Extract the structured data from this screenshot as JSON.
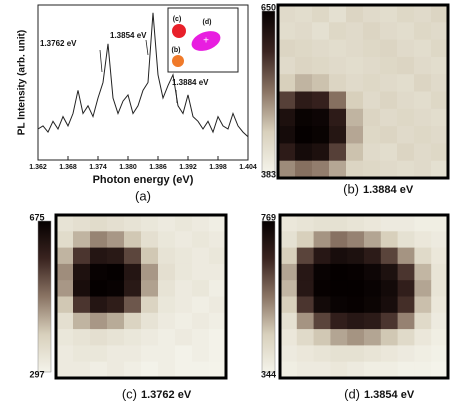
{
  "chart_data": [
    {
      "type": "line",
      "x_label": "Photon energy (eV)",
      "y_label": "PL Intensity (arb. unit)",
      "caption": "(a)",
      "x": [
        1.362,
        1.363,
        1.364,
        1.365,
        1.366,
        1.367,
        1.368,
        1.369,
        1.37,
        1.371,
        1.372,
        1.373,
        1.374,
        1.375,
        1.376,
        1.377,
        1.378,
        1.379,
        1.38,
        1.381,
        1.382,
        1.383,
        1.384,
        1.385,
        1.386,
        1.387,
        1.388,
        1.389,
        1.39,
        1.391,
        1.392,
        1.393,
        1.394,
        1.395,
        1.396,
        1.397,
        1.398,
        1.399,
        1.4,
        1.401,
        1.402,
        1.403,
        1.404
      ],
      "values": [
        20,
        22,
        18,
        25,
        20,
        28,
        22,
        30,
        45,
        30,
        35,
        28,
        40,
        50,
        75,
        40,
        30,
        38,
        42,
        30,
        35,
        45,
        50,
        95,
        55,
        40,
        48,
        55,
        35,
        30,
        42,
        28,
        25,
        20,
        25,
        18,
        28,
        22,
        20,
        30,
        22,
        18,
        15
      ],
      "color": "#222222",
      "xlim": [
        1.362,
        1.404
      ],
      "xticks": [
        1.362,
        1.368,
        1.374,
        {
          "value": 1.38,
          "label": "1.380"
        },
        1.386,
        1.392,
        1.398,
        1.404
      ],
      "ylim": [
        0,
        100
      ],
      "annotations": [
        "1.3762 eV",
        "1.3854 eV",
        "1.3884 eV"
      ],
      "inset_labels": [
        "(c)",
        "(d)",
        "(b)"
      ],
      "inset_colors": [
        "#e8202a",
        "#e81ee0",
        "#f07a2a"
      ]
    },
    {
      "type": "heatmap",
      "caption": "(b)",
      "energy": "1.3884 eV",
      "zlim": [
        383,
        650
      ],
      "colormap": [
        "#f4f3ea",
        "#d8d0bc",
        "#8a7464",
        "#3a2420",
        "#050000"
      ],
      "z": [
        [
          430,
          425,
          435,
          420,
          440,
          430,
          425,
          435,
          430,
          440
        ],
        [
          425,
          430,
          420,
          435,
          430,
          440,
          430,
          425,
          435,
          430
        ],
        [
          440,
          435,
          430,
          425,
          430,
          435,
          440,
          430,
          425,
          435
        ],
        [
          430,
          440,
          435,
          430,
          425,
          430,
          435,
          440,
          430,
          425
        ],
        [
          450,
          470,
          460,
          440,
          430,
          435,
          430,
          425,
          440,
          430
        ],
        [
          560,
          600,
          590,
          520,
          450,
          430,
          440,
          430,
          425,
          435
        ],
        [
          620,
          645,
          640,
          600,
          470,
          440,
          430,
          435,
          430,
          425
        ],
        [
          630,
          650,
          645,
          610,
          480,
          435,
          440,
          430,
          435,
          430
        ],
        [
          600,
          630,
          620,
          560,
          460,
          430,
          425,
          440,
          430,
          435
        ],
        [
          500,
          520,
          510,
          480,
          440,
          435,
          430,
          425,
          430,
          420
        ]
      ]
    },
    {
      "type": "heatmap",
      "caption": "(c)",
      "energy": "1.3762 eV",
      "zlim": [
        297,
        675
      ],
      "colormap": [
        "#f4f3ea",
        "#d8d0bc",
        "#8a7464",
        "#3a2420",
        "#050000"
      ],
      "z": [
        [
          340,
          350,
          360,
          350,
          340,
          330,
          320,
          330,
          320,
          310
        ],
        [
          360,
          420,
          470,
          450,
          400,
          350,
          330,
          320,
          330,
          320
        ],
        [
          420,
          560,
          620,
          610,
          540,
          400,
          340,
          330,
          320,
          330
        ],
        [
          460,
          630,
          670,
          675,
          620,
          450,
          350,
          330,
          320,
          320
        ],
        [
          450,
          640,
          675,
          670,
          610,
          440,
          340,
          320,
          330,
          310
        ],
        [
          400,
          560,
          620,
          600,
          520,
          380,
          330,
          320,
          310,
          320
        ],
        [
          350,
          420,
          450,
          430,
          380,
          340,
          320,
          310,
          320,
          310
        ],
        [
          330,
          340,
          350,
          340,
          330,
          320,
          310,
          320,
          310,
          300
        ],
        [
          320,
          330,
          330,
          320,
          320,
          310,
          310,
          300,
          310,
          300
        ],
        [
          320,
          320,
          310,
          320,
          310,
          300,
          310,
          300,
          300,
          297
        ]
      ]
    },
    {
      "type": "heatmap",
      "caption": "(d)",
      "energy": "1.3854 eV",
      "zlim": [
        344,
        769
      ],
      "colormap": [
        "#f4f3ea",
        "#d8d0bc",
        "#8a7464",
        "#3a2420",
        "#050000"
      ],
      "z": [
        [
          380,
          390,
          400,
          400,
          390,
          380,
          370,
          370,
          360,
          360
        ],
        [
          400,
          450,
          520,
          560,
          540,
          500,
          450,
          400,
          380,
          370
        ],
        [
          450,
          620,
          700,
          730,
          720,
          690,
          620,
          520,
          420,
          380
        ],
        [
          500,
          700,
          760,
          769,
          765,
          750,
          720,
          640,
          480,
          390
        ],
        [
          480,
          700,
          765,
          769,
          769,
          760,
          740,
          680,
          500,
          390
        ],
        [
          450,
          640,
          740,
          760,
          765,
          755,
          730,
          650,
          470,
          380
        ],
        [
          400,
          520,
          620,
          680,
          700,
          690,
          640,
          540,
          420,
          370
        ],
        [
          380,
          420,
          460,
          500,
          520,
          500,
          460,
          420,
          380,
          360
        ],
        [
          370,
          380,
          390,
          400,
          400,
          390,
          380,
          370,
          360,
          350
        ],
        [
          360,
          370,
          370,
          380,
          370,
          360,
          360,
          350,
          350,
          344
        ]
      ]
    }
  ]
}
